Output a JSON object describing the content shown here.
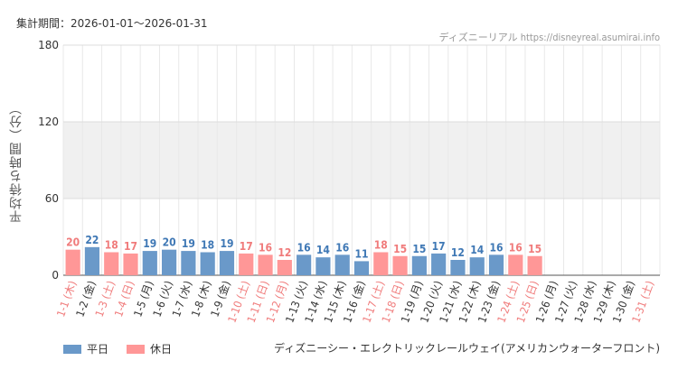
{
  "header": {
    "period_label": "集計期間：2026-01-01〜2026-01-31",
    "site_credit": "ディズニーリアル https://disneyreal.asumirai.info"
  },
  "footer": {
    "attraction_name": "ディズニーシー・エレクトリックレールウェイ(アメリカンウォーターフロント)"
  },
  "colors": {
    "weekday": "#6a99c9",
    "holiday": "#ff9797",
    "weekday_text": "#3f78b5",
    "holiday_text": "#f07b7b",
    "band": "#f0f0f0",
    "grid": "#e8e8e8"
  },
  "legend": [
    {
      "label": "平日",
      "type": "weekday"
    },
    {
      "label": "休日",
      "type": "holiday"
    }
  ],
  "chart_data": {
    "type": "bar",
    "title": "",
    "xlabel": "",
    "ylabel": "平均待ち時間（分）",
    "ylim": [
      0,
      180
    ],
    "yticks": [
      0,
      60,
      120,
      180
    ],
    "grid": true,
    "categories": [
      "1-1 (木)",
      "1-2 (金)",
      "1-3 (土)",
      "1-4 (日)",
      "1-5 (月)",
      "1-6 (火)",
      "1-7 (水)",
      "1-8 (木)",
      "1-9 (金)",
      "1-10 (土)",
      "1-11 (日)",
      "1-12 (月)",
      "1-13 (火)",
      "1-14 (水)",
      "1-15 (木)",
      "1-16 (金)",
      "1-17 (土)",
      "1-18 (日)",
      "1-19 (月)",
      "1-20 (火)",
      "1-21 (水)",
      "1-22 (木)",
      "1-23 (金)",
      "1-24 (土)",
      "1-25 (日)",
      "1-26 (月)",
      "1-27 (火)",
      "1-28 (水)",
      "1-29 (木)",
      "1-30 (金)",
      "1-31 (土)"
    ],
    "day_types": [
      "holiday",
      "weekday",
      "holiday",
      "holiday",
      "weekday",
      "weekday",
      "weekday",
      "weekday",
      "weekday",
      "holiday",
      "holiday",
      "holiday",
      "weekday",
      "weekday",
      "weekday",
      "weekday",
      "holiday",
      "holiday",
      "weekday",
      "weekday",
      "weekday",
      "weekday",
      "weekday",
      "holiday",
      "holiday",
      "weekday",
      "weekday",
      "weekday",
      "weekday",
      "weekday",
      "holiday"
    ],
    "values": [
      20,
      22,
      18,
      17,
      19,
      20,
      19,
      18,
      19,
      17,
      16,
      12,
      16,
      14,
      16,
      11,
      18,
      15,
      15,
      17,
      12,
      14,
      16,
      16,
      15,
      null,
      null,
      null,
      null,
      null,
      null
    ],
    "legend_position": "bottom-left"
  }
}
